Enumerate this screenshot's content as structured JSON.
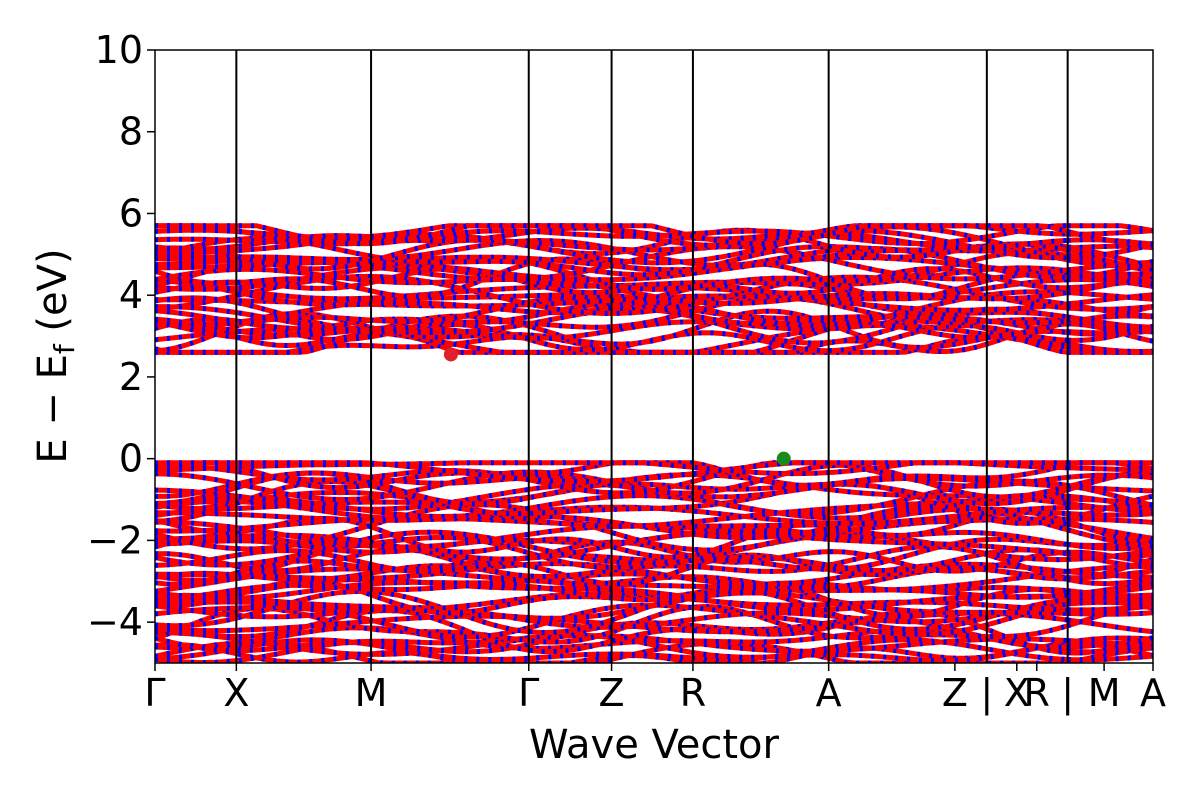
{
  "chart_data": {
    "type": "line",
    "title": "",
    "xlabel": "Wave Vector",
    "ylabel": {
      "prefix": "E − E",
      "subscript": "f",
      "suffix": " (eV)"
    },
    "ylim": [
      -5,
      10
    ],
    "yticks": [
      -4,
      -2,
      0,
      2,
      4,
      6,
      8,
      10
    ],
    "ytick_labels": [
      "−4",
      "−2",
      "0",
      "2",
      "4",
      "6",
      "8",
      "10"
    ],
    "xlim": [
      0,
      1
    ],
    "kpoints": [
      {
        "label": "Γ",
        "x": 0.0
      },
      {
        "label": "X",
        "x": 0.0815
      },
      {
        "label": "M",
        "x": 0.2165
      },
      {
        "label": "Γ",
        "x": 0.3745
      },
      {
        "label": "Z",
        "x": 0.4575
      },
      {
        "label": "R",
        "x": 0.539
      },
      {
        "label": "A",
        "x": 0.675
      },
      {
        "label": "Z",
        "x": 0.8015
      },
      {
        "label": "|",
        "x": 0.8335
      },
      {
        "label": "X",
        "x": 0.8635
      },
      {
        "label": "R",
        "x": 0.8835
      },
      {
        "label": "|",
        "x": 0.9145
      },
      {
        "label": "M",
        "x": 0.951
      },
      {
        "label": "A",
        "x": 1.0
      }
    ],
    "kpoint_dividers": [
      0.0815,
      0.2165,
      0.3745,
      0.4575,
      0.539,
      0.675,
      0.8335,
      0.9145
    ],
    "segment_breaks": [
      0.9145
    ],
    "band_groups": [
      {
        "name": "conduction",
        "emin": 2.6,
        "emax": 5.7,
        "count": 34
      },
      {
        "name": "valence",
        "emin": -5.0,
        "emax": -0.1,
        "count": 48
      }
    ],
    "series": [
      {
        "color": "#ff0000"
      },
      {
        "color": "#0000ff"
      }
    ],
    "markers": [
      {
        "x": 0.2965,
        "y": 2.55,
        "color": "#e0202a"
      },
      {
        "x": 0.63,
        "y": 0.0,
        "color": "#1a8a1a"
      }
    ],
    "grid": false
  }
}
